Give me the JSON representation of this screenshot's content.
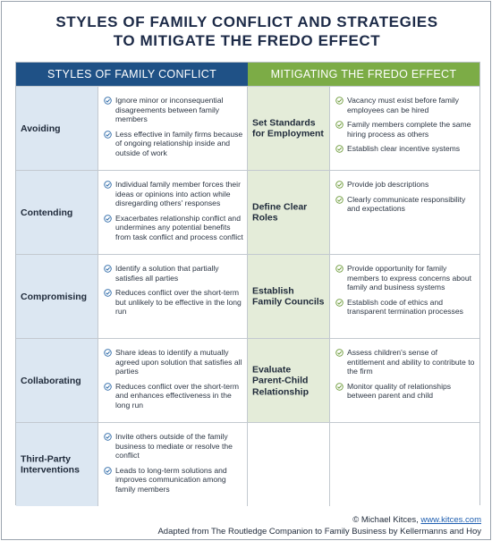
{
  "title": {
    "line1": "STYLES OF FAMILY CONFLICT AND STRATEGIES",
    "line2": "TO MITIGATE THE FREDO EFFECT"
  },
  "headers": {
    "left": "STYLES OF FAMILY CONFLICT",
    "right": "MITIGATING THE FREDO EFFECT"
  },
  "colors": {
    "left_header": "#1f5186",
    "right_header": "#7cac46",
    "left_label_bg": "#dce7f2",
    "right_label_bg": "#e4ecd9",
    "check_left": "#2d6aa8",
    "check_right": "#6d9b3a"
  },
  "rows": [
    {
      "style": "Avoiding",
      "style_items": [
        "Ignore minor or inconsequential disagreements between family members",
        "Less effective in family firms because of ongoing relationship inside and outside of work"
      ],
      "strategy": "Set Standards for Employment",
      "strategy_items": [
        "Vacancy must exist before family employees can be hired",
        "Family members complete the same hiring process as others",
        "Establish clear incentive systems"
      ]
    },
    {
      "style": "Contending",
      "style_items": [
        "Individual family member forces their ideas or opinions into action while disregarding others' responses",
        "Exacerbates relationship conflict and undermines any potential benefits from task conflict and process conflict"
      ],
      "strategy": "Define Clear Roles",
      "strategy_items": [
        "Provide job descriptions",
        "Clearly communicate responsibility and expectations"
      ]
    },
    {
      "style": "Compromising",
      "style_items": [
        "Identify a solution that partially satisfies all parties",
        "Reduces conflict over the short-term but unlikely to be effective in the long run"
      ],
      "strategy": "Establish Family Councils",
      "strategy_items": [
        "Provide opportunity for family members to express concerns about family and business systems",
        "Establish code of ethics and transparent termination processes"
      ]
    },
    {
      "style": "Collaborating",
      "style_items": [
        "Share ideas to identify a mutually agreed upon solution that satisfies all parties",
        "Reduces conflict over the short-term and enhances effectiveness in the long run"
      ],
      "strategy": "Evaluate Parent-Child Relationship",
      "strategy_items": [
        "Assess children's sense of entitlement and ability to contribute to the firm",
        "Monitor quality of relationships between parent and child"
      ]
    },
    {
      "style": "Third-Party Interventions",
      "style_items": [
        "Invite others outside of the family business to mediate or resolve the conflict",
        "Leads to long-term solutions and improves communication among family members"
      ],
      "strategy": "",
      "strategy_items": []
    }
  ],
  "footer": {
    "credit_prefix": "© Michael Kitces, ",
    "credit_link": "www.kitces.com",
    "source": "Adapted from The Routledge Companion to Family Business by Kellermanns and Hoy"
  }
}
